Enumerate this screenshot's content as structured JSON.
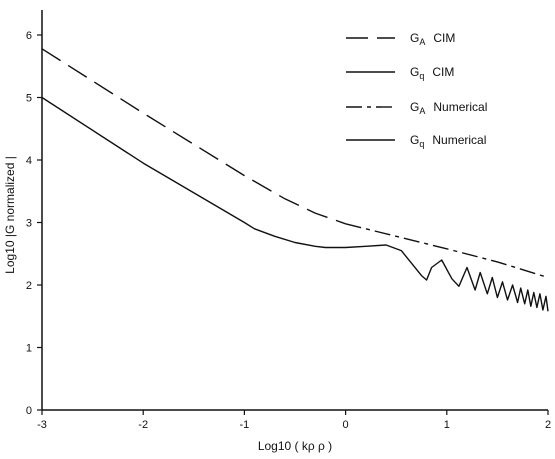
{
  "chart_data": {
    "type": "line",
    "xlabel": "Log10 ( kρ ρ )",
    "ylabel": "Log10 |G normalized |",
    "xlim": [
      -3,
      2
    ],
    "ylim": [
      0,
      6.4
    ],
    "x_ticks": [
      "-3",
      "-2",
      "-1",
      "0",
      "1",
      "2"
    ],
    "y_ticks": [
      "0",
      "1",
      "2",
      "3",
      "4",
      "5",
      "6"
    ],
    "grid": false,
    "legend_position": "top-right",
    "legend": [
      {
        "symbol": "G",
        "sub": "A",
        "label": "CIM",
        "style": "long-dash"
      },
      {
        "symbol": "G",
        "sub": "q",
        "label": "CIM",
        "style": "solid"
      },
      {
        "symbol": "G",
        "sub": "A",
        "label": "Numerical",
        "style": "dash-dot"
      },
      {
        "symbol": "G",
        "sub": "q",
        "label": "Numerical",
        "style": "solid"
      }
    ],
    "series": [
      {
        "style": "long-dash",
        "x": [
          -3,
          -2,
          -1,
          -0.6,
          -0.3,
          0
        ],
        "y": [
          5.78,
          4.75,
          3.75,
          3.38,
          3.15,
          2.98
        ]
      },
      {
        "style": "dash-dot",
        "x": [
          0,
          0.5,
          1,
          1.5,
          2
        ],
        "y": [
          2.98,
          2.78,
          2.58,
          2.37,
          2.12
        ]
      },
      {
        "style": "solid",
        "x": [
          -3,
          -2,
          -1,
          -0.9,
          -0.7,
          -0.5,
          -0.3,
          -0.2,
          0,
          0.2,
          0.4,
          0.55,
          0.65,
          0.75,
          0.8,
          0.85,
          0.95,
          1.05,
          1.12,
          1.2,
          1.28,
          1.33,
          1.4,
          1.45,
          1.5,
          1.55,
          1.6,
          1.65,
          1.7,
          1.73,
          1.77,
          1.8,
          1.83,
          1.86,
          1.89,
          1.92,
          1.95,
          1.98,
          2.0
        ],
        "y": [
          5.0,
          3.95,
          3.0,
          2.9,
          2.78,
          2.68,
          2.62,
          2.6,
          2.6,
          2.62,
          2.64,
          2.55,
          2.35,
          2.15,
          2.08,
          2.28,
          2.4,
          2.1,
          1.98,
          2.28,
          1.92,
          2.2,
          1.86,
          2.12,
          1.8,
          2.05,
          1.76,
          2.0,
          1.72,
          1.95,
          1.7,
          1.92,
          1.66,
          1.88,
          1.64,
          1.86,
          1.6,
          1.82,
          1.58
        ]
      }
    ]
  }
}
